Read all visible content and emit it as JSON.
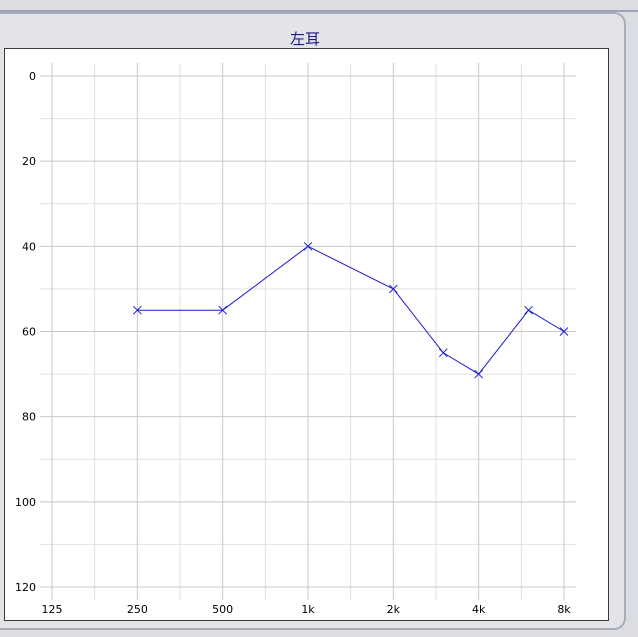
{
  "panel": {
    "title": "左耳"
  },
  "colors": {
    "series": "#1c1ccc",
    "grid_major": "#c8c8c8",
    "grid_minor": "#e2e2e2",
    "title": "#1c1c8c"
  },
  "chart_data": {
    "type": "line",
    "title": "左耳",
    "xlabel": "",
    "ylabel": "",
    "x_tick_labels": [
      "125",
      "250",
      "500",
      "1k",
      "2k",
      "4k",
      "8k"
    ],
    "x_ticks_hz": [
      125,
      250,
      500,
      1000,
      2000,
      4000,
      8000
    ],
    "x_scale": "log2",
    "xlim": [
      125,
      8000
    ],
    "y_tick_labels": [
      "0",
      "20",
      "40",
      "60",
      "80",
      "100",
      "120"
    ],
    "y_ticks": [
      0,
      20,
      40,
      60,
      80,
      100,
      120
    ],
    "ylim": [
      0,
      120
    ],
    "y_inverted": true,
    "grid": true,
    "marker": "x",
    "series": [
      {
        "x": [
          250,
          500,
          1000,
          2000,
          3000,
          4000,
          6000,
          8000
        ],
        "y": [
          55,
          55,
          40,
          50,
          65,
          70,
          55,
          60
        ]
      }
    ]
  }
}
